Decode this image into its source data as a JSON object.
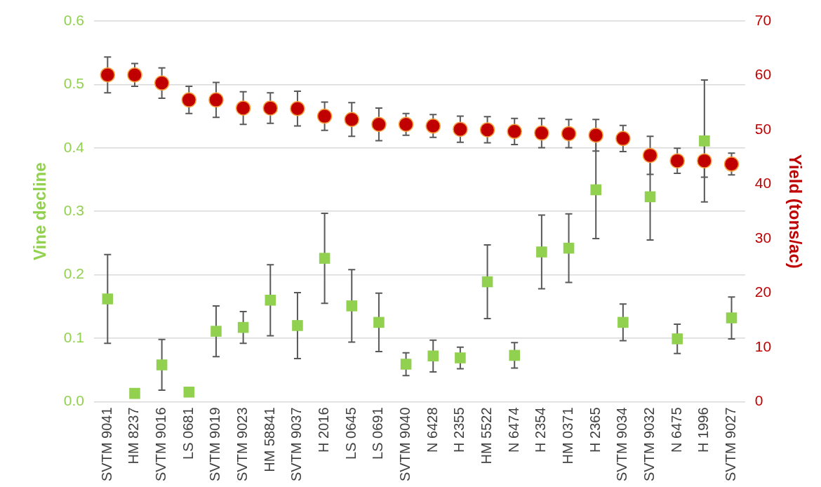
{
  "chart_data": {
    "type": "scatter",
    "ylabel": "Vine decline",
    "y2label": "Yield (tons/ac)",
    "categories": [
      "SVTM 9041",
      "HM 8237",
      "SVTM 9016",
      "LS 0681",
      "SVTM 9019",
      "SVTM 9023",
      "HM 58841",
      "SVTM 9037",
      "H 2016",
      "LS 0645",
      "LS 0691",
      "SVTM 9040",
      "N 6428",
      "H 2355",
      "HM 5522",
      "N 6474",
      "H 2354",
      "HM 0371",
      "H 2365",
      "SVTM 9034",
      "SVTM 9032",
      "N 6475",
      "H 1996",
      "SVTM 9027"
    ],
    "series": [
      {
        "marker": "square",
        "color": "#92d050",
        "values": [
          0.162,
          0.013,
          0.058,
          0.015,
          0.111,
          0.117,
          0.16,
          0.12,
          0.226,
          0.151,
          0.125,
          0.059,
          0.072,
          0.069,
          0.189,
          0.073,
          0.236,
          0.242,
          0.334,
          0.125,
          0.323,
          0.099,
          0.411,
          0.132
        ],
        "errors": [
          0.07,
          null,
          0.04,
          null,
          0.04,
          0.025,
          0.056,
          0.052,
          0.071,
          0.057,
          0.046,
          0.018,
          0.025,
          0.017,
          0.058,
          0.02,
          0.058,
          0.054,
          0.077,
          0.029,
          0.068,
          0.023,
          0.096,
          0.033
        ]
      },
      {
        "marker": "circle",
        "axis": "y2",
        "color": "#c00000",
        "values": [
          60.1,
          60.1,
          58.6,
          55.5,
          55.5,
          54.0,
          54.0,
          53.9,
          52.5,
          51.9,
          51.0,
          51.0,
          50.7,
          50.1,
          50.0,
          49.7,
          49.4,
          49.3,
          49.0,
          48.4,
          45.3,
          44.3,
          44.3,
          43.7
        ],
        "errors": [
          3.3,
          2.1,
          2.8,
          2.5,
          3.2,
          3.0,
          2.8,
          3.2,
          2.6,
          3.1,
          3.0,
          2.0,
          2.1,
          2.4,
          2.4,
          2.4,
          2.7,
          2.6,
          2.9,
          2.4,
          3.5,
          2.3,
          3.0,
          2.0
        ]
      }
    ],
    "ylim": [
      0,
      0.6
    ],
    "yticks": [
      {
        "value": 0,
        "label": "0.0"
      },
      0.1,
      0.2,
      0.3,
      0.4,
      0.5,
      0.6
    ],
    "y2lim": [
      0,
      70
    ],
    "y2ticks": [
      0,
      10,
      20,
      30,
      40,
      50,
      60,
      70
    ],
    "grid": "y",
    "legend": false
  }
}
